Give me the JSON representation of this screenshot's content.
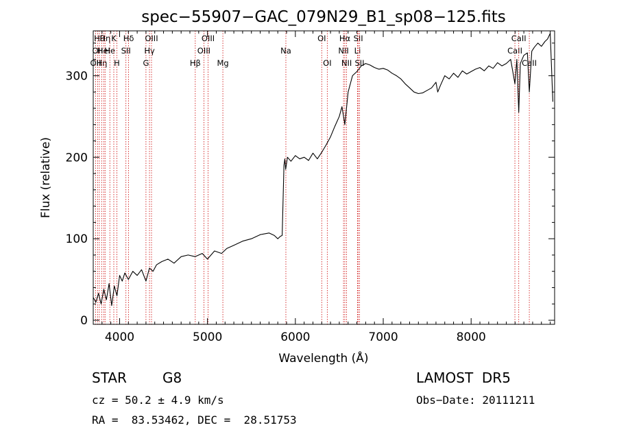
{
  "chart_data": {
    "type": "line",
    "title": "spec−55907−GAC_079N29_B1_sp08−125.fits",
    "xlabel": "Wavelength (Å)",
    "ylabel": "Flux (relative)",
    "xlim": [
      3700,
      8950
    ],
    "ylim": [
      -5,
      355
    ],
    "x_ticks": [
      4000,
      5000,
      6000,
      7000,
      8000
    ],
    "y_ticks": [
      0,
      100,
      200,
      300
    ],
    "grid": false,
    "series": [
      {
        "x": [
          3700,
          3730,
          3760,
          3790,
          3820,
          3850,
          3880,
          3910,
          3940,
          3970,
          4000,
          4030,
          4060,
          4100,
          4150,
          4200,
          4250,
          4300,
          4340,
          4380,
          4420,
          4480,
          4550,
          4620,
          4700,
          4780,
          4860,
          4940,
          5000,
          5080,
          5160,
          5220,
          5300,
          5400,
          5500,
          5600,
          5700,
          5760,
          5800,
          5830,
          5850,
          5870,
          5880,
          5890,
          5910,
          5950,
          6000,
          6050,
          6100,
          6150,
          6200,
          6250,
          6300,
          6350,
          6400,
          6450,
          6500,
          6530,
          6563,
          6600,
          6650,
          6700,
          6750,
          6800,
          6850,
          6900,
          6950,
          7000,
          7050,
          7100,
          7150,
          7200,
          7250,
          7300,
          7350,
          7400,
          7450,
          7500,
          7550,
          7600,
          7620,
          7650,
          7700,
          7750,
          7800,
          7850,
          7900,
          7950,
          8000,
          8050,
          8100,
          8150,
          8200,
          8250,
          8300,
          8350,
          8400,
          8450,
          8498,
          8520,
          8542,
          8560,
          8600,
          8640,
          8662,
          8690,
          8720,
          8760,
          8800,
          8840,
          8870,
          8900,
          8930
        ],
        "y": [
          28,
          22,
          33,
          20,
          38,
          25,
          45,
          18,
          42,
          30,
          55,
          48,
          58,
          50,
          60,
          55,
          62,
          48,
          64,
          60,
          68,
          72,
          75,
          70,
          78,
          80,
          78,
          82,
          75,
          85,
          82,
          88,
          92,
          97,
          100,
          105,
          107,
          104,
          100,
          103,
          104,
          190,
          198,
          185,
          200,
          195,
          202,
          198,
          200,
          196,
          205,
          198,
          206,
          215,
          225,
          238,
          250,
          262,
          240,
          280,
          300,
          305,
          312,
          315,
          313,
          310,
          308,
          309,
          307,
          303,
          300,
          296,
          290,
          285,
          280,
          278,
          279,
          282,
          285,
          292,
          280,
          288,
          300,
          296,
          303,
          298,
          306,
          302,
          305,
          308,
          310,
          306,
          312,
          309,
          316,
          312,
          315,
          320,
          290,
          320,
          255,
          315,
          325,
          328,
          280,
          330,
          335,
          340,
          336,
          342,
          345,
          352,
          268
        ]
      }
    ],
    "line_markers": [
      {
        "x": 3727,
        "label": "OII",
        "row": 2
      },
      {
        "x": 3750,
        "label": "OII",
        "row": 1
      },
      {
        "x": 3770,
        "label": "Hθ",
        "row": 0
      },
      {
        "x": 3797,
        "label": "Hη",
        "row": 2
      },
      {
        "x": 3820,
        "label": "HeI",
        "row": 1
      },
      {
        "x": 3835,
        "label": "Hη",
        "row": 0
      },
      {
        "x": 3889,
        "label": "He",
        "row": 1
      },
      {
        "x": 3934,
        "label": "K",
        "row": 0
      },
      {
        "x": 3969,
        "label": "H",
        "row": 2
      },
      {
        "x": 4072,
        "label": "SII",
        "row": 1
      },
      {
        "x": 4102,
        "label": "Hδ",
        "row": 0
      },
      {
        "x": 4300,
        "label": "G",
        "row": 2
      },
      {
        "x": 4340,
        "label": "Hγ",
        "row": 1
      },
      {
        "x": 4363,
        "label": "OIII",
        "row": 0
      },
      {
        "x": 4861,
        "label": "Hβ",
        "row": 2
      },
      {
        "x": 4959,
        "label": "OIII",
        "row": 1
      },
      {
        "x": 5007,
        "label": "OIII",
        "row": 0
      },
      {
        "x": 5175,
        "label": "Mg",
        "row": 2
      },
      {
        "x": 5892,
        "label": "Na",
        "row": 1
      },
      {
        "x": 6300,
        "label": "OI",
        "row": 0
      },
      {
        "x": 6363,
        "label": "OI",
        "row": 2
      },
      {
        "x": 6548,
        "label": "NII",
        "row": 1
      },
      {
        "x": 6563,
        "label": "Hα",
        "row": 0
      },
      {
        "x": 6583,
        "label": "NII",
        "row": 2
      },
      {
        "x": 6707,
        "label": "Li",
        "row": 1
      },
      {
        "x": 6716,
        "label": "SII",
        "row": 0
      },
      {
        "x": 6731,
        "label": "SII",
        "row": 2
      },
      {
        "x": 8498,
        "label": "CaII",
        "row": 1
      },
      {
        "x": 8542,
        "label": "CaII",
        "row": 0
      },
      {
        "x": 8662,
        "label": "CaII",
        "row": 2
      }
    ]
  },
  "info": {
    "class_label": "STAR",
    "subclass_label": "G8",
    "survey_label": "LAMOST  DR5",
    "redshift_text": "cz = 50.2 ± 4.9 km/s",
    "obs_date_text": "Obs−Date: 20111211",
    "coords_text": "RA =  83.53462, DEC =  28.51753"
  },
  "colors": {
    "spectrum": "#000000",
    "marker_line": "#cc0000",
    "axes": "#000000"
  }
}
